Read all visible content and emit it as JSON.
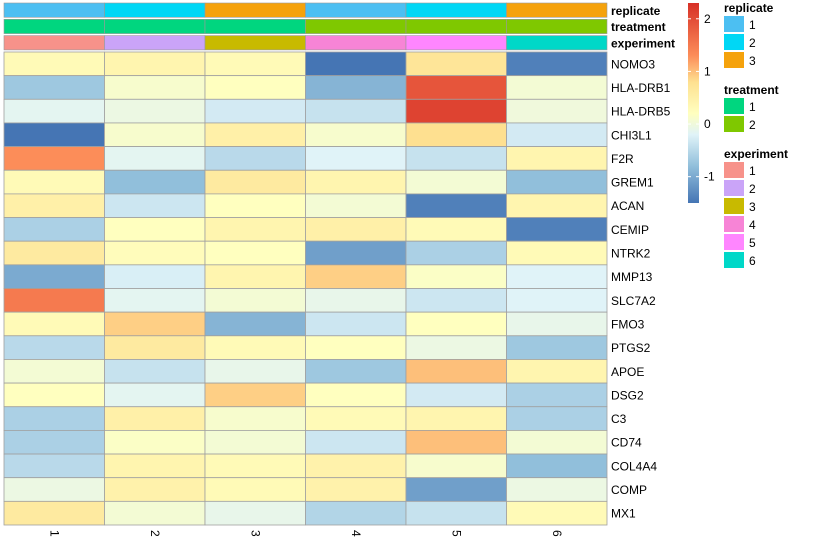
{
  "chart_data": {
    "type": "heatmap",
    "rows": [
      "NOMO3",
      "HLA-DRB1",
      "HLA-DRB5",
      "CHI3L1",
      "F2R",
      "GREM1",
      "ACAN",
      "CEMIP",
      "NTRK2",
      "MMP13",
      "SLC7A2",
      "FMO3",
      "PTGS2",
      "APOE",
      "DSG2",
      "C3",
      "CD74",
      "COL4A4",
      "COMP",
      "MX1"
    ],
    "columns": [
      "1",
      "2",
      "3",
      "4",
      "5",
      "6"
    ],
    "values": [
      [
        0.3,
        0.4,
        0.3,
        -1.5,
        0.7,
        -1.4
      ],
      [
        -0.7,
        0.1,
        0.2,
        -0.9,
        1.9,
        0.05
      ],
      [
        -0.15,
        -0.05,
        -0.3,
        -0.4,
        2.1,
        0.0
      ],
      [
        -1.5,
        0.1,
        0.5,
        0.1,
        0.8,
        -0.3
      ],
      [
        1.3,
        -0.15,
        -0.5,
        -0.2,
        -0.4,
        0.4
      ],
      [
        0.3,
        -0.8,
        0.6,
        0.4,
        0.05,
        -0.8
      ],
      [
        0.5,
        -0.35,
        0.2,
        0.05,
        -1.4,
        0.4
      ],
      [
        -0.6,
        0.2,
        0.4,
        0.5,
        0.3,
        -1.4
      ],
      [
        0.6,
        0.25,
        0.2,
        -1.1,
        -0.6,
        0.3
      ],
      [
        -1.0,
        -0.25,
        0.4,
        0.9,
        0.15,
        -0.2
      ],
      [
        1.5,
        -0.15,
        0.05,
        -0.1,
        -0.35,
        -0.2
      ],
      [
        0.3,
        0.9,
        -0.9,
        -0.35,
        0.2,
        -0.1
      ],
      [
        -0.5,
        0.6,
        0.3,
        0.2,
        -0.05,
        -0.7
      ],
      [
        0.05,
        -0.4,
        -0.1,
        -0.7,
        1.0,
        0.4
      ],
      [
        0.2,
        -0.15,
        0.9,
        0.2,
        -0.3,
        -0.6
      ],
      [
        -0.6,
        0.5,
        0.1,
        0.3,
        0.4,
        -0.6
      ],
      [
        -0.6,
        0.15,
        0.05,
        -0.35,
        1.0,
        0.05
      ],
      [
        -0.5,
        0.4,
        0.3,
        0.45,
        0.1,
        -0.8
      ],
      [
        -0.05,
        0.45,
        0.3,
        0.45,
        -1.1,
        -0.05
      ],
      [
        0.6,
        0.05,
        -0.1,
        -0.55,
        -0.4,
        0.3
      ]
    ],
    "color_scale": {
      "min": -1.5,
      "max": 2.3,
      "ticks": [
        -1,
        0,
        1,
        2
      ],
      "stops": [
        {
          "v": -1.5,
          "color": "#4575B4"
        },
        {
          "v": -0.8,
          "color": "#91BFDB"
        },
        {
          "v": -0.2,
          "color": "#E0F3F8"
        },
        {
          "v": 0.2,
          "color": "#FFFFBF"
        },
        {
          "v": 0.8,
          "color": "#FEE090"
        },
        {
          "v": 1.3,
          "color": "#FC8D59"
        },
        {
          "v": 2.3,
          "color": "#D73027"
        }
      ]
    },
    "annotations": [
      {
        "name": "replicate",
        "values": [
          "1",
          "2",
          "3",
          "1",
          "2",
          "3"
        ]
      },
      {
        "name": "treatment",
        "values": [
          "1",
          "1",
          "1",
          "2",
          "2",
          "2"
        ]
      },
      {
        "name": "experiment",
        "values": [
          "1",
          "2",
          "3",
          "4",
          "5",
          "6"
        ]
      }
    ],
    "legends": [
      {
        "title": "replicate",
        "levels": [
          {
            "label": "1",
            "color": "#4CBFF2"
          },
          {
            "label": "2",
            "color": "#00D7F5"
          },
          {
            "label": "3",
            "color": "#F5A20C"
          }
        ]
      },
      {
        "title": "treatment",
        "levels": [
          {
            "label": "1",
            "color": "#00D67F"
          },
          {
            "label": "2",
            "color": "#7FC800"
          }
        ]
      },
      {
        "title": "experiment",
        "levels": [
          {
            "label": "1",
            "color": "#F7928A"
          },
          {
            "label": "2",
            "color": "#CAA4F8"
          },
          {
            "label": "3",
            "color": "#C8BA00"
          },
          {
            "label": "4",
            "color": "#F784D6"
          },
          {
            "label": "5",
            "color": "#FF86FF"
          },
          {
            "label": "6",
            "color": "#00D8C8"
          }
        ]
      }
    ]
  }
}
